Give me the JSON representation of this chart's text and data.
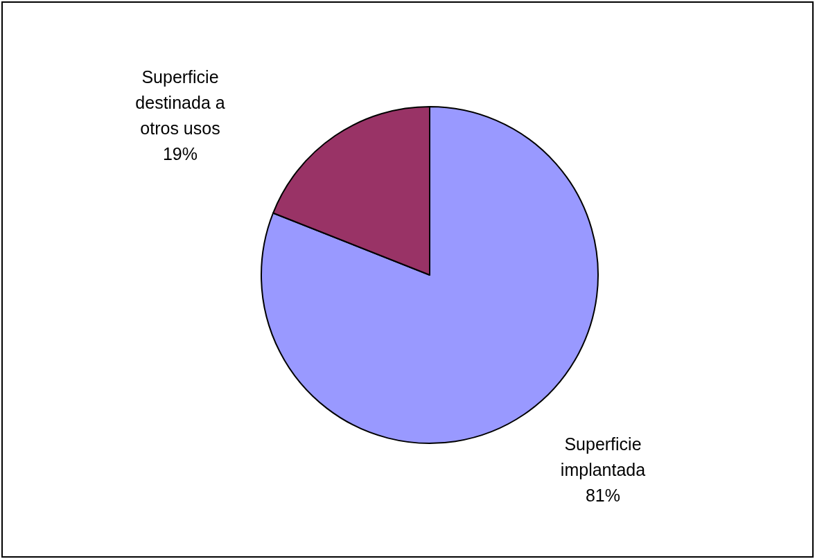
{
  "chart_data": {
    "type": "pie",
    "categories": [
      "Superficie implantada",
      "Superficie destinada a otros usos"
    ],
    "values": [
      81,
      19
    ],
    "colors": [
      "#9999ff",
      "#993366"
    ],
    "value_labels": [
      "81%",
      "19%"
    ]
  }
}
